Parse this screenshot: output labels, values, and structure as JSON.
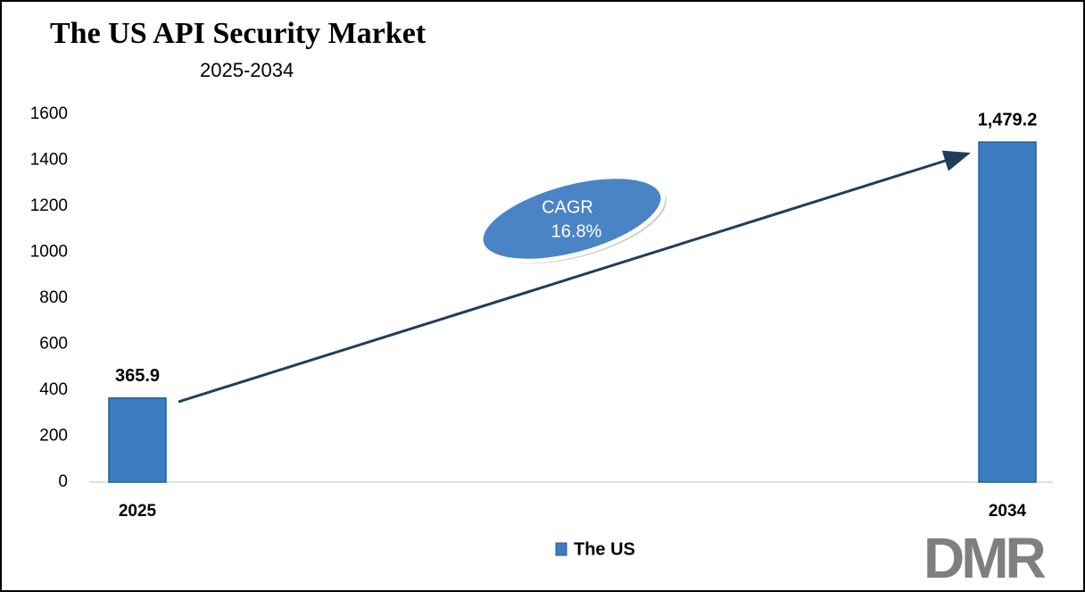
{
  "chart_data": {
    "type": "bar",
    "title": "The US API Security Market",
    "subtitle": "2025-2034",
    "categories": [
      "2025",
      "2034"
    ],
    "series": [
      {
        "name": "The US",
        "color": "#3b7dc0",
        "values": [
          365.9,
          1479.2
        ],
        "value_labels": [
          "365.9",
          "1,479.2"
        ]
      }
    ],
    "ylim": [
      0,
      1600
    ],
    "yticks": [
      0,
      200,
      400,
      600,
      800,
      1000,
      1200,
      1400,
      1600
    ],
    "annotations": [
      "CAGR",
      "16.8%"
    ],
    "logo": "DMR"
  }
}
